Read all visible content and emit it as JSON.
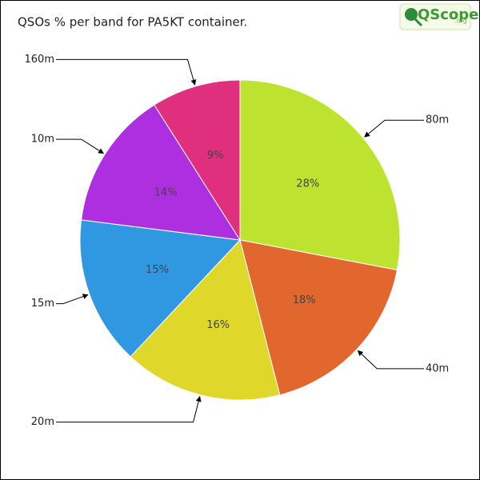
{
  "chart_data": {
    "type": "pie",
    "title": "QSOs % per band for PA5KT container.",
    "logo": {
      "main": "QScope",
      "suffix": ".org"
    },
    "categories": [
      "80m",
      "40m",
      "20m",
      "15m",
      "10m",
      "160m"
    ],
    "values": [
      28,
      18,
      16,
      15,
      14,
      9
    ],
    "value_labels": [
      "28%",
      "18%",
      "16%",
      "15%",
      "14%",
      "9%"
    ],
    "colors": [
      "#bde22f",
      "#e2672e",
      "#e0d72b",
      "#3098e0",
      "#ae2fe0",
      "#e02f7d"
    ]
  }
}
